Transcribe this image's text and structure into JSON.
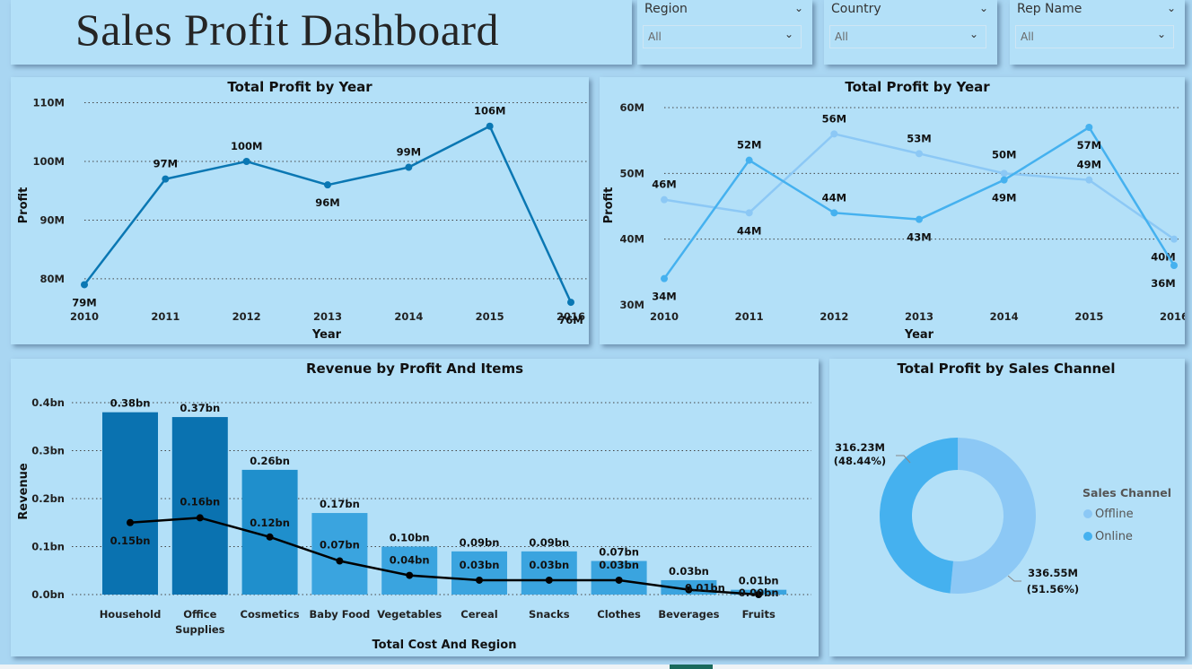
{
  "header": {
    "title": "Sales Profit Dashboard"
  },
  "slicers": [
    {
      "label": "Region",
      "value": "All"
    },
    {
      "label": "Country",
      "value": "All"
    },
    {
      "label": "Rep Name",
      "value": "All"
    }
  ],
  "colors": {
    "background": "#a9d6f2",
    "panel": "#b3e0f8",
    "line_dark": "#0a77b3",
    "offline": "#8cc8f5",
    "online": "#45b1ef",
    "bar_dark": "#0a72b0",
    "bar_mid": "#1f8fcc",
    "bar_light": "#3aa4df",
    "cost_line": "#000000"
  },
  "chart_data": [
    {
      "id": "profit_by_year_total",
      "type": "line",
      "title": "Total Profit by Year",
      "xlabel": "Year",
      "ylabel": "Profit",
      "x": [
        "2010",
        "2011",
        "2012",
        "2013",
        "2014",
        "2015",
        "2016"
      ],
      "yticks": [
        "80M",
        "90M",
        "100M",
        "110M"
      ],
      "ylim": [
        78,
        111
      ],
      "series": [
        {
          "values": [
            79,
            97,
            100,
            96,
            99,
            106,
            76
          ],
          "labels": [
            "79M",
            "97M",
            "100M",
            "96M",
            "99M",
            "106M",
            "76M"
          ]
        }
      ],
      "grid": true
    },
    {
      "id": "profit_by_year_channel",
      "type": "line",
      "title": "Total Profit by Year",
      "xlabel": "Year",
      "ylabel": "Profit",
      "x": [
        "2010",
        "2011",
        "2012",
        "2013",
        "2014",
        "2015",
        "2016"
      ],
      "yticks": [
        "30M",
        "40M",
        "50M",
        "60M"
      ],
      "ylim": [
        30,
        60
      ],
      "series": [
        {
          "values": [
            46,
            44,
            56,
            53,
            50,
            49,
            40
          ],
          "labels": [
            "46M",
            "44M",
            "56M",
            "53M",
            "50M",
            "49M",
            "40M"
          ]
        },
        {
          "values": [
            34,
            52,
            44,
            43,
            49,
            57,
            36
          ],
          "labels": [
            "34M",
            "52M",
            "44M",
            "43M",
            "49M",
            "57M",
            "36M"
          ]
        }
      ],
      "grid": true
    },
    {
      "id": "revenue_by_items",
      "type": "bar",
      "title": "Revenue by Profit And Items",
      "xlabel": "Total Cost And Region",
      "ylabel": "Revenue",
      "categories": [
        "Household",
        "Office Supplies",
        "Cosmetics",
        "Baby Food",
        "Vegetables",
        "Cereal",
        "Snacks",
        "Clothes",
        "Beverages",
        "Fruits"
      ],
      "yticks": [
        "0.0bn",
        "0.1bn",
        "0.2bn",
        "0.3bn",
        "0.4bn"
      ],
      "ylim": [
        0,
        0.4
      ],
      "series": [
        {
          "type": "bar",
          "values": [
            0.38,
            0.37,
            0.26,
            0.17,
            0.1,
            0.09,
            0.09,
            0.07,
            0.03,
            0.01
          ],
          "labels": [
            "0.38bn",
            "0.37bn",
            "0.26bn",
            "0.17bn",
            "0.10bn",
            "0.09bn",
            "0.09bn",
            "0.07bn",
            "0.03bn",
            "0.01bn"
          ]
        },
        {
          "type": "line",
          "values": [
            0.15,
            0.16,
            0.12,
            0.07,
            0.04,
            0.03,
            0.03,
            0.03,
            0.01,
            0.0
          ],
          "labels": [
            "0.15bn",
            "0.16bn",
            "0.12bn",
            "0.07bn",
            "0.04bn",
            "0.03bn",
            "0.03bn",
            "0.03bn",
            "0.01bn",
            "0.00bn"
          ]
        }
      ],
      "grid": true
    },
    {
      "id": "profit_by_channel",
      "type": "pie",
      "title": "Total Profit by Sales Channel",
      "legend_title": "Sales Channel",
      "legend_position": "right",
      "slices": [
        {
          "name": "Offline",
          "value": 336.55,
          "label": "336.55M",
          "percent": "(51.56%)"
        },
        {
          "name": "Online",
          "value": 316.23,
          "label": "316.23M",
          "percent": "(48.44%)"
        }
      ]
    }
  ]
}
